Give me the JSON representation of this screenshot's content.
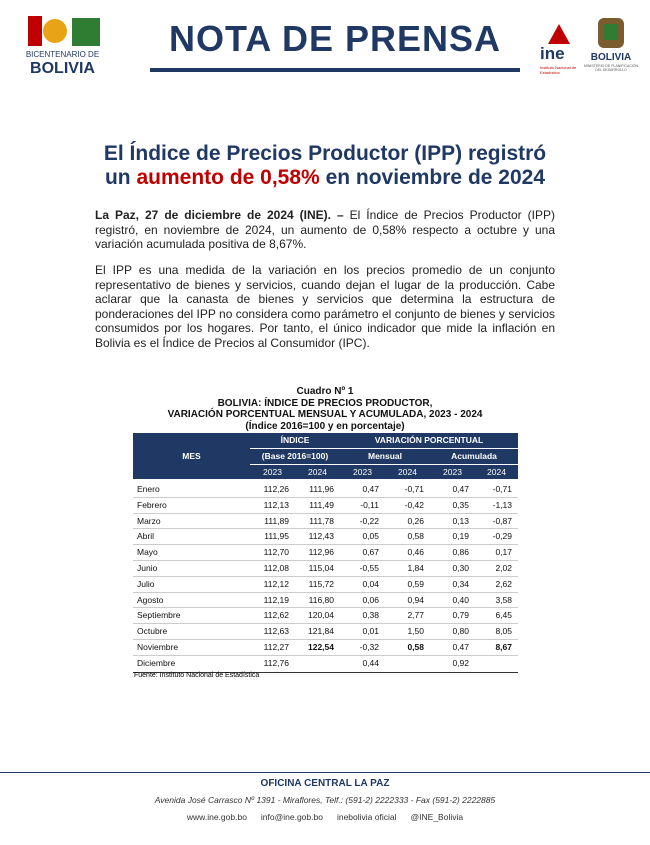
{
  "header": {
    "left_logo": {
      "line1": "BICENTENARIO DE",
      "line2": "BOLIVIA"
    },
    "title": "NOTA DE PRENSA",
    "ine_logo": {
      "name": "ine",
      "subtitle": "Instituto Nacional de Estadística"
    },
    "right_logo": {
      "name": "BOLIVIA",
      "subtitle": "MINISTERIO DE PLANIFICACIÓN DEL DESARROLLO"
    }
  },
  "headline": {
    "line1": "El Índice de Precios Productor (IPP) registró",
    "line2_start": "un",
    "line2_highlight": "aumento de 0,58%",
    "line2_end": "en noviembre de 2024"
  },
  "paragraphs": [
    {
      "lead": "La Paz, 27 de diciembre de 2024 (INE). –",
      "text": "El Índice de Precios Productor (IPP) registró, en noviembre de 2024, un aumento de 0,58% respecto a octubre y una variación acumulada positiva de 8,67%."
    },
    {
      "text": "El IPP es una medida de la variación en los precios promedio de un conjunto representativo de bienes y servicios, cuando dejan el lugar de la producción. Cabe aclarar que la canasta de bienes y servicios que determina la estructura de ponderaciones del IPP no considera como parámetro el conjunto de bienes y servicios consumidos por los hogares. Por tanto, el único indicador que mide la inflación en Bolivia es el Índice de Precios al Consumidor (IPC)."
    }
  ],
  "table": {
    "caption": [
      "Cuadro Nº 1",
      "BOLIVIA: ÍNDICE DE PRECIOS PRODUCTOR,",
      "VARIACIÓN PORCENTUAL MENSUAL Y ACUMULADA, 2023 - 2024",
      "(Índice 2016=100 y en porcentaje)"
    ],
    "header": {
      "mes": "MES",
      "indice": "ÍNDICE",
      "base": "(Base 2016=100)",
      "variacion": "VARIACIÓN PORCENTUAL",
      "mensual": "Mensual",
      "acumulada": "Acumulada",
      "years": [
        "2023",
        "2024",
        "2023",
        "2024",
        "2023",
        "2024"
      ]
    },
    "rows": [
      [
        "Enero",
        "112,26",
        "111,96",
        "0,47",
        "-0,71",
        "0,47",
        "-0,71"
      ],
      [
        "Febrero",
        "112,13",
        "111,49",
        "-0,11",
        "-0,42",
        "0,35",
        "-1,13"
      ],
      [
        "Marzo",
        "111,89",
        "111,78",
        "-0,22",
        "0,26",
        "0,13",
        "-0,87"
      ],
      [
        "Abril",
        "111,95",
        "112,43",
        "0,05",
        "0,58",
        "0,19",
        "-0,29"
      ],
      [
        "Mayo",
        "112,70",
        "112,96",
        "0,67",
        "0,46",
        "0,86",
        "0,17"
      ],
      [
        "Junio",
        "112,08",
        "115,04",
        "-0,55",
        "1,84",
        "0,30",
        "2,02"
      ],
      [
        "Julio",
        "112,12",
        "115,72",
        "0,04",
        "0,59",
        "0,34",
        "2,62"
      ],
      [
        "Agosto",
        "112,19",
        "116,80",
        "0,06",
        "0,94",
        "0,40",
        "3,58"
      ],
      [
        "Septiembre",
        "112,62",
        "120,04",
        "0,38",
        "2,77",
        "0,79",
        "6,45"
      ],
      [
        "Octubre",
        "112,63",
        "121,84",
        "0,01",
        "1,50",
        "0,80",
        "8,05"
      ],
      [
        "Noviembre",
        "112,27",
        "122,54",
        "-0,32",
        "0,58",
        "0,47",
        "8,67"
      ],
      [
        "Diciembre",
        "112,76",
        null,
        "0,44",
        null,
        "0,92",
        null
      ]
    ],
    "source": "Fuente: Instituto Nacional de Estadística"
  },
  "footer": {
    "office": "OFICINA CENTRAL LA PAZ",
    "address": "Avenida José Carrasco Nº 1391 - Miraflores, Telf.: (591-2) 2222333 - Fax (591-2) 2222885",
    "links": [
      "www.ine.gob.bo",
      "info@ine.gob.bo",
      "inebolivia oficial",
      "@INE_Bolivia"
    ]
  }
}
